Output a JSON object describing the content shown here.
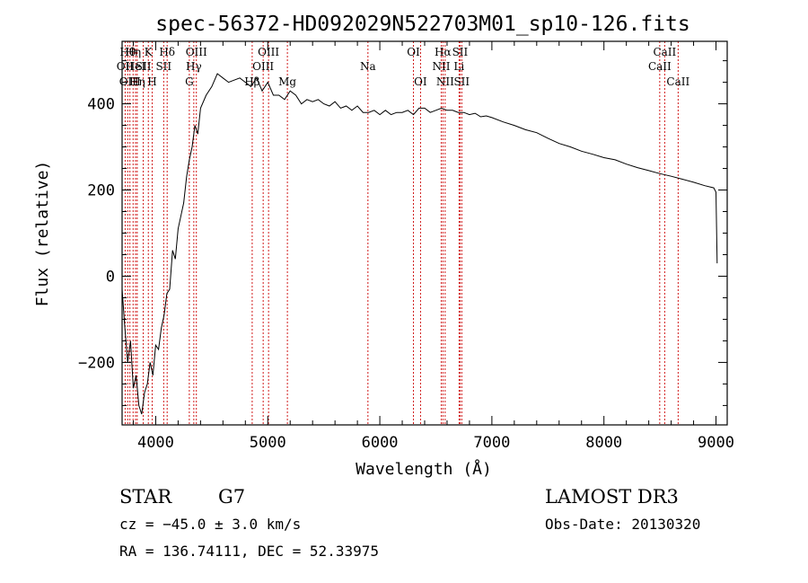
{
  "chart_data": {
    "type": "line",
    "title": "spec-56372-HD092029N522703M01_sp10-126.fits",
    "xlabel": "Wavelength (Å)",
    "ylabel": "Flux (relative)",
    "xlim": [
      3700,
      9100
    ],
    "ylim": [
      -345,
      545
    ],
    "xticks": [
      4000,
      5000,
      6000,
      7000,
      8000,
      9000
    ],
    "yticks": [
      -200,
      0,
      200,
      400
    ],
    "grid": false,
    "line_color": "#000000",
    "marker_color": "#cc0000",
    "series": [
      {
        "x": [
          3700,
          3725,
          3750,
          3775,
          3800,
          3825,
          3850,
          3875,
          3900,
          3925,
          3950,
          3975,
          4000,
          4025,
          4050,
          4075,
          4100,
          4125,
          4150,
          4175,
          4200,
          4225,
          4250,
          4275,
          4300,
          4325,
          4350,
          4375,
          4400,
          4450,
          4500,
          4550,
          4600,
          4650,
          4700,
          4750,
          4800,
          4850,
          4900,
          4950,
          5000,
          5050,
          5100,
          5150,
          5200,
          5250,
          5300,
          5350,
          5400,
          5450,
          5500,
          5550,
          5600,
          5650,
          5700,
          5750,
          5800,
          5850,
          5900,
          5950,
          6000,
          6050,
          6100,
          6150,
          6200,
          6250,
          6300,
          6350,
          6400,
          6450,
          6500,
          6550,
          6600,
          6650,
          6700,
          6750,
          6800,
          6850,
          6900,
          6950,
          7000,
          7100,
          7200,
          7300,
          7400,
          7500,
          7600,
          7700,
          7800,
          7900,
          8000,
          8100,
          8200,
          8300,
          8400,
          8500,
          8600,
          8700,
          8800,
          8900,
          8980,
          9000,
          9010
        ],
        "y": [
          -30,
          -120,
          -200,
          -150,
          -260,
          -230,
          -300,
          -320,
          -270,
          -250,
          -200,
          -230,
          -160,
          -170,
          -120,
          -90,
          -40,
          -30,
          60,
          40,
          110,
          140,
          170,
          230,
          270,
          300,
          350,
          330,
          390,
          420,
          440,
          470,
          460,
          450,
          455,
          460,
          450,
          440,
          460,
          430,
          450,
          420,
          420,
          410,
          430,
          420,
          400,
          410,
          405,
          410,
          400,
          395,
          405,
          390,
          395,
          385,
          395,
          380,
          380,
          385,
          375,
          385,
          375,
          380,
          380,
          385,
          375,
          390,
          390,
          380,
          385,
          390,
          385,
          385,
          380,
          380,
          375,
          378,
          370,
          372,
          368,
          358,
          350,
          340,
          333,
          320,
          308,
          300,
          290,
          283,
          275,
          270,
          260,
          252,
          245,
          238,
          232,
          225,
          218,
          210,
          205,
          195,
          30
        ]
      }
    ],
    "lines": [
      {
        "x": 3727,
        "label": "OII",
        "row": 1
      },
      {
        "x": 3750,
        "label": "Hθ",
        "row": 0
      },
      {
        "x": 3770,
        "label": "OIII",
        "row": 2
      },
      {
        "x": 3798,
        "label": "Hη",
        "row": 0
      },
      {
        "x": 3820,
        "label": "HeI",
        "row": 1
      },
      {
        "x": 3835,
        "label": "Hη",
        "row": 2
      },
      {
        "x": 3889,
        "label": "SII",
        "row": 1
      },
      {
        "x": 3934,
        "label": "K",
        "row": 0
      },
      {
        "x": 3968,
        "label": "H",
        "row": 2
      },
      {
        "x": 4071,
        "label": "SII",
        "row": 1
      },
      {
        "x": 4102,
        "label": "Hδ",
        "row": 0
      },
      {
        "x": 4300,
        "label": "G",
        "row": 2
      },
      {
        "x": 4340,
        "label": "Hγ",
        "row": 1
      },
      {
        "x": 4363,
        "label": "OIII",
        "row": 0
      },
      {
        "x": 4861,
        "label": "Hβ",
        "row": 2
      },
      {
        "x": 4959,
        "label": "OIII",
        "row": 1
      },
      {
        "x": 5007,
        "label": "OIII",
        "row": 0
      },
      {
        "x": 5175,
        "label": "Mg",
        "row": 2
      },
      {
        "x": 5894,
        "label": "Na",
        "row": 1
      },
      {
        "x": 6300,
        "label": "OI",
        "row": 0
      },
      {
        "x": 6363,
        "label": "OI",
        "row": 2
      },
      {
        "x": 6548,
        "label": "NII",
        "row": 1
      },
      {
        "x": 6563,
        "label": "Hα",
        "row": 0
      },
      {
        "x": 6583,
        "label": "NII",
        "row": 2
      },
      {
        "x": 6707,
        "label": "Li",
        "row": 1
      },
      {
        "x": 6716,
        "label": "SII",
        "row": 0
      },
      {
        "x": 6731,
        "label": "SII",
        "row": 2
      },
      {
        "x": 8498,
        "label": "CaII",
        "row": 1
      },
      {
        "x": 8542,
        "label": "CaII",
        "row": 0
      },
      {
        "x": 8662,
        "label": "CaII",
        "row": 2
      }
    ]
  },
  "info": {
    "object_type": "STAR",
    "subclass": "G7",
    "survey": "LAMOST DR3",
    "cz": "cz = −45.0 ± 3.0 km/s",
    "obs_date": "Obs-Date: 20130320",
    "coords": "RA = 136.74111, DEC =  52.33975"
  }
}
